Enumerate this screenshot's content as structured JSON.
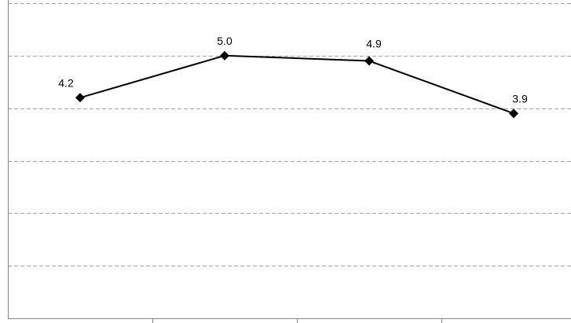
{
  "chart_data": {
    "type": "line",
    "categories": [
      "",
      "",
      "",
      ""
    ],
    "values": [
      4.2,
      5.0,
      4.9,
      3.9
    ],
    "data_labels": [
      "4.2",
      "5.0",
      "4.9",
      "3.9"
    ],
    "title": "",
    "xlabel": "",
    "ylabel": "",
    "ylim": [
      0,
      6
    ],
    "y_gridline_step": 1,
    "grid": true,
    "grid_style": "dashed",
    "marker": "diamond",
    "line_color": "#000000",
    "legend": "none"
  }
}
